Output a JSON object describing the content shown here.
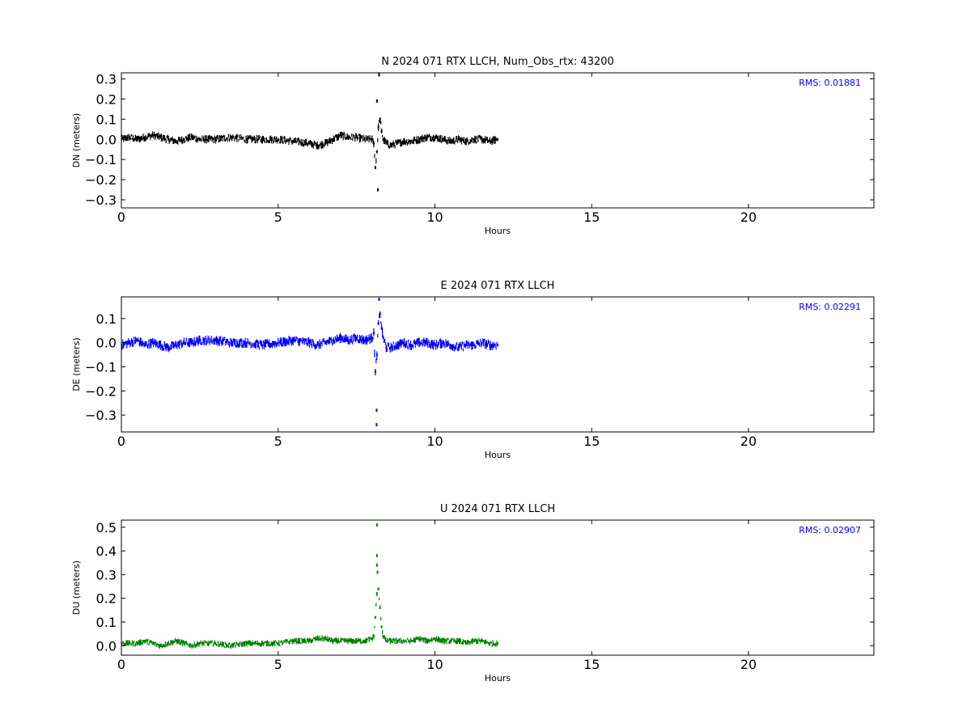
{
  "chart_data": [
    {
      "type": "scatter",
      "title": "N 2024 071 RTX  LLCH, Num_Obs_rtx: 43200",
      "xlabel": "Hours",
      "ylabel": "DN (meters)",
      "xlim": [
        0,
        24
      ],
      "ylim": [
        -0.34,
        0.33
      ],
      "xticks": [
        0,
        5,
        10,
        15,
        20
      ],
      "yticks": [
        -0.3,
        -0.2,
        -0.1,
        0.0,
        0.1,
        0.2,
        0.3
      ],
      "series_color": "#000000",
      "annotation": "RMS:  0.01881",
      "annotation_color": "#0000ff",
      "grid": false,
      "series": {
        "x": [
          0,
          0.25,
          0.5,
          0.75,
          1.0,
          1.25,
          1.5,
          1.75,
          2.0,
          2.25,
          2.5,
          3.0,
          3.5,
          4.0,
          4.5,
          5.0,
          5.5,
          6.0,
          6.25,
          6.5,
          6.75,
          7.0,
          7.25,
          7.5,
          7.75,
          8.0,
          8.05,
          8.1,
          8.15,
          8.2,
          8.25,
          8.3,
          8.35,
          8.45,
          8.6,
          8.8,
          9.0,
          9.25,
          9.5,
          9.75,
          10.0,
          10.25,
          10.5,
          10.75,
          11.0,
          11.25,
          11.5,
          11.75,
          12.0
        ],
        "y": [
          0.0,
          0.01,
          0.0,
          0.01,
          0.02,
          0.01,
          0.0,
          -0.01,
          0.0,
          0.01,
          0.0,
          0.0,
          0.01,
          0.0,
          0.0,
          0.0,
          -0.01,
          -0.02,
          -0.03,
          -0.02,
          0.0,
          0.02,
          0.01,
          0.01,
          0.0,
          0.0,
          -0.02,
          -0.14,
          -0.06,
          0.06,
          0.1,
          0.04,
          0.0,
          -0.02,
          -0.03,
          -0.02,
          -0.01,
          -0.01,
          0.0,
          0.01,
          0.01,
          0.0,
          -0.01,
          0.0,
          -0.01,
          0.0,
          0.0,
          -0.01,
          0.0
        ],
        "outliers": [
          [
            8.18,
            -0.25
          ],
          [
            8.22,
            0.32
          ],
          [
            8.15,
            0.19
          ]
        ]
      }
    },
    {
      "type": "scatter",
      "title": "E 2024 071 RTX  LLCH",
      "xlabel": "Hours",
      "ylabel": "DE (meters)",
      "xlim": [
        0,
        24
      ],
      "ylim": [
        -0.37,
        0.19
      ],
      "xticks": [
        0,
        5,
        10,
        15,
        20
      ],
      "yticks": [
        -0.3,
        -0.2,
        -0.1,
        0.0,
        0.1
      ],
      "series_color": "#0000ff",
      "annotation": "RMS:  0.02291",
      "annotation_color": "#0000ff",
      "grid": false,
      "series": {
        "x": [
          0,
          0.25,
          0.5,
          0.75,
          1.0,
          1.25,
          1.5,
          1.75,
          2.0,
          2.25,
          2.5,
          3.0,
          3.5,
          4.0,
          4.5,
          5.0,
          5.5,
          6.0,
          6.25,
          6.5,
          6.75,
          7.0,
          7.25,
          7.5,
          7.75,
          8.0,
          8.05,
          8.1,
          8.15,
          8.2,
          8.25,
          8.3,
          8.35,
          8.45,
          8.6,
          8.8,
          9.0,
          9.25,
          9.5,
          9.75,
          10.0,
          10.25,
          10.5,
          10.75,
          11.0,
          11.25,
          11.5,
          11.75,
          12.0
        ],
        "y": [
          -0.01,
          0.0,
          0.01,
          -0.01,
          0.0,
          -0.01,
          -0.02,
          -0.01,
          0.0,
          0.0,
          0.01,
          0.01,
          0.0,
          0.0,
          -0.01,
          0.0,
          0.01,
          0.0,
          -0.01,
          0.0,
          0.01,
          0.02,
          0.01,
          0.02,
          0.01,
          0.02,
          0.04,
          -0.12,
          -0.05,
          0.08,
          0.12,
          0.06,
          0.02,
          -0.02,
          -0.02,
          -0.01,
          0.0,
          -0.01,
          0.0,
          0.0,
          -0.01,
          0.0,
          -0.01,
          -0.02,
          -0.01,
          -0.01,
          0.0,
          -0.01,
          -0.01
        ],
        "outliers": [
          [
            8.14,
            -0.28
          ],
          [
            8.14,
            -0.34
          ],
          [
            8.22,
            0.18
          ]
        ]
      }
    },
    {
      "type": "scatter",
      "title": "U 2024 071 RTX  LLCH",
      "xlabel": "Hours",
      "ylabel": "DU (meters)",
      "xlim": [
        0,
        24
      ],
      "ylim": [
        -0.04,
        0.53
      ],
      "xticks": [
        0,
        5,
        10,
        15,
        20
      ],
      "yticks": [
        0.0,
        0.1,
        0.2,
        0.3,
        0.4,
        0.5
      ],
      "series_color": "#008000",
      "annotation": "RMS:  0.02907",
      "annotation_color": "#0000ff",
      "grid": false,
      "series": {
        "x": [
          0,
          0.25,
          0.5,
          0.75,
          1.0,
          1.25,
          1.5,
          1.75,
          2.0,
          2.25,
          2.5,
          3.0,
          3.5,
          4.0,
          4.5,
          5.0,
          5.5,
          6.0,
          6.25,
          6.5,
          6.75,
          7.0,
          7.25,
          7.5,
          7.75,
          8.0,
          8.05,
          8.1,
          8.15,
          8.2,
          8.25,
          8.3,
          8.35,
          8.45,
          8.6,
          8.8,
          9.0,
          9.25,
          9.5,
          9.75,
          10.0,
          10.25,
          10.5,
          10.75,
          11.0,
          11.25,
          11.5,
          11.75,
          12.0
        ],
        "y": [
          0.01,
          0.01,
          0.01,
          0.02,
          0.01,
          0.0,
          0.01,
          0.02,
          0.01,
          0.0,
          0.01,
          0.01,
          0.0,
          0.01,
          0.01,
          0.01,
          0.02,
          0.02,
          0.03,
          0.03,
          0.02,
          0.02,
          0.02,
          0.02,
          0.02,
          0.03,
          0.04,
          0.12,
          0.22,
          0.24,
          0.16,
          0.08,
          0.04,
          0.02,
          0.02,
          0.02,
          0.02,
          0.02,
          0.03,
          0.02,
          0.03,
          0.02,
          0.02,
          0.02,
          0.01,
          0.02,
          0.02,
          0.01,
          0.01
        ],
        "outliers": [
          [
            8.15,
            0.38
          ],
          [
            8.15,
            0.34
          ],
          [
            8.15,
            0.51
          ],
          [
            8.17,
            0.31
          ]
        ]
      }
    }
  ]
}
